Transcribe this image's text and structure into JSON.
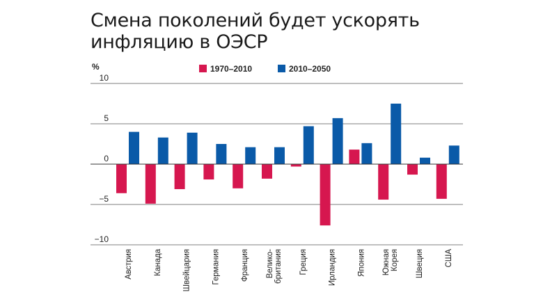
{
  "title_line1": "Смена поколений будет ускорять",
  "title_line2": "инфляцию в ОЭСР",
  "chart_data": {
    "type": "bar",
    "ylabel": "%",
    "ylim": [
      -10,
      10
    ],
    "yticks": [
      10,
      5,
      0,
      -5,
      -10
    ],
    "ytick_labels": [
      "10",
      "5",
      "0",
      "−5",
      "−10"
    ],
    "legend_position": "top-center",
    "categories": [
      [
        "Австрия"
      ],
      [
        "Канада"
      ],
      [
        "Швейцария"
      ],
      [
        "Германия"
      ],
      [
        "Франция"
      ],
      [
        "Велико-",
        "британия"
      ],
      [
        "Греция"
      ],
      [
        "Ирландия"
      ],
      [
        "Япония"
      ],
      [
        "Южная",
        "Корея"
      ],
      [
        "Швеция"
      ],
      [
        "США"
      ]
    ],
    "series": [
      {
        "name": "1970–2010",
        "color": "#d6174f",
        "values": [
          -3.6,
          -4.9,
          -3.1,
          -1.9,
          -3.0,
          -1.8,
          -0.3,
          -7.6,
          1.8,
          -4.4,
          -1.3,
          -4.3
        ]
      },
      {
        "name": "2010–2050",
        "color": "#0a5aa8",
        "values": [
          4.0,
          3.3,
          3.9,
          2.5,
          2.1,
          2.1,
          4.7,
          5.7,
          2.6,
          7.5,
          0.8,
          2.3
        ]
      }
    ]
  }
}
